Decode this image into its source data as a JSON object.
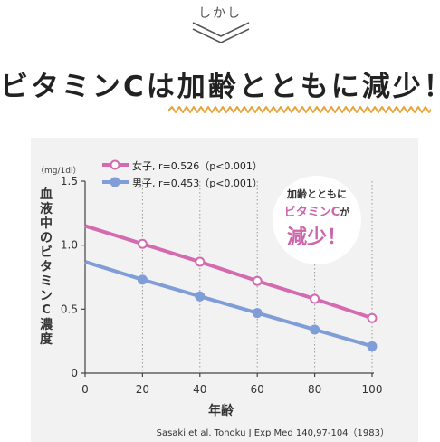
{
  "header": {
    "top_label": "しかし",
    "headline": "ビタミンCは加齢とともに減少！"
  },
  "bubble": {
    "line1": "加齢とともに",
    "line2_main": "ビタミンC",
    "line2_suffix": "が",
    "line3": "減少！"
  },
  "citation": "Sasaki et al. Tohoku J Exp Med 140,97-104（1983）",
  "colors": {
    "female": "#d46bb0",
    "male": "#7f9ed8",
    "squiggle": "#e6a23c",
    "panel": "#f2f2f2"
  },
  "chart_data": {
    "type": "line",
    "ylabel": "血液中のビタミンC濃度",
    "yunit": "（mg/1dl）",
    "xlabel": "年齢",
    "xlim": [
      0,
      100
    ],
    "ylim": [
      0,
      1.5
    ],
    "xticks": [
      "0",
      "20",
      "40",
      "60",
      "80",
      "100"
    ],
    "yticks": [
      "0",
      "0.5",
      "1.0",
      "1.5"
    ],
    "vertical_dotted_grid": true,
    "legend_position": "top-left",
    "series": [
      {
        "name": "女子, r=0.526（p<0.001）",
        "marker": "open-circle",
        "line_start": [
          0,
          1.15
        ],
        "x": [
          20,
          40,
          60,
          80,
          100
        ],
        "y": [
          1.01,
          0.87,
          0.72,
          0.58,
          0.43
        ]
      },
      {
        "name": "男子, r=0.453（p<0.001）",
        "marker": "filled-circle",
        "line_start": [
          0,
          0.87
        ],
        "x": [
          20,
          40,
          60,
          80,
          100
        ],
        "y": [
          0.73,
          0.6,
          0.47,
          0.34,
          0.21
        ]
      }
    ]
  }
}
